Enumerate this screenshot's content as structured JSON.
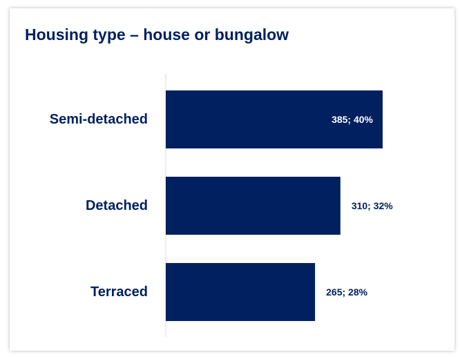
{
  "colors": {
    "bar": "#002060",
    "text": "#002060",
    "axis": "#d9d9d9",
    "label_inside": "#ffffff",
    "label_outside": "#002060"
  },
  "chart_data": {
    "type": "bar",
    "orientation": "horizontal",
    "title": "Housing type – house or bungalow",
    "categories": [
      "Semi-detached",
      "Detached",
      "Terraced"
    ],
    "values": [
      385,
      310,
      265
    ],
    "percentages": [
      40,
      32,
      28
    ],
    "data_labels": [
      "385; 40%",
      "310; 32%",
      "265; 28%"
    ],
    "xlim": [
      0,
      385
    ],
    "grid": false,
    "legend": "none"
  }
}
